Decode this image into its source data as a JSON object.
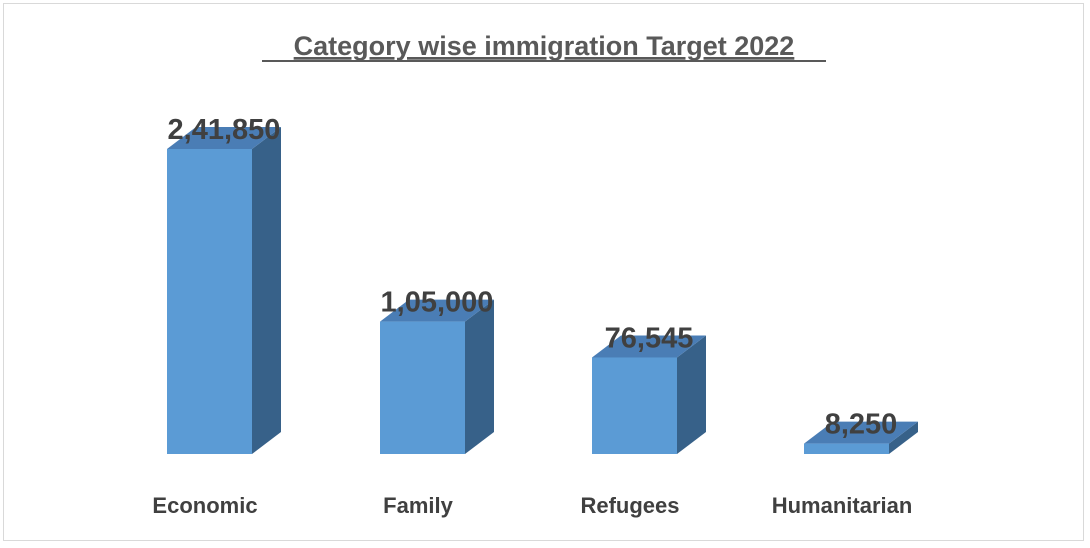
{
  "chart_data": {
    "type": "bar",
    "style": "3d-column",
    "title": "Category wise immigration Target 2022",
    "categories": [
      "Economic",
      "Family",
      "Refugees",
      "Humanitarian"
    ],
    "values": [
      241850,
      105000,
      76545,
      8250
    ],
    "data_labels": [
      "2,41,850",
      "1,05,000",
      "76,545",
      "8,250"
    ],
    "xlabel": "",
    "ylabel": "",
    "ylim": [
      0,
      241850
    ],
    "grid": false,
    "legend": "none",
    "colors": {
      "front": "#5b9bd5",
      "top": "#4a7db5",
      "side": "#376189"
    }
  }
}
